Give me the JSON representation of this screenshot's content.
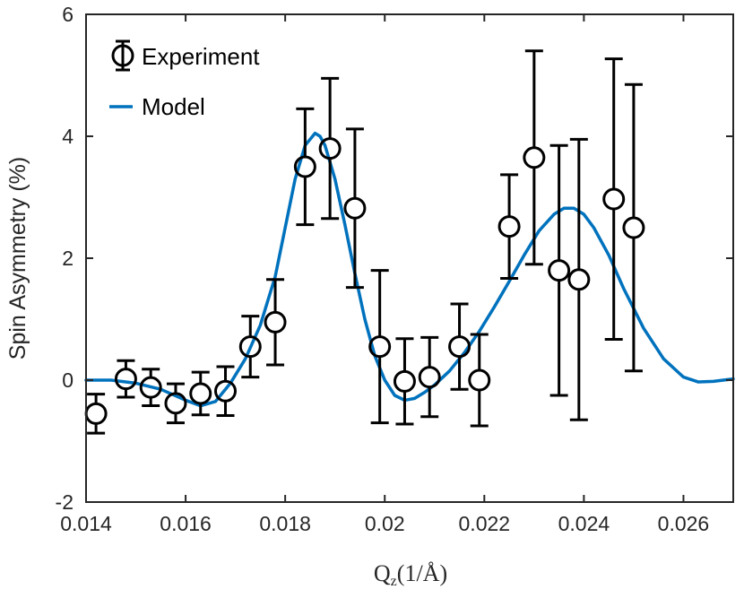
{
  "chart_data": {
    "type": "scatter",
    "title": "",
    "xlabel": "Q_z(1/Å)",
    "xlabel_main": "Q",
    "xlabel_sub": "z",
    "xlabel_rest": "(1/Å)",
    "ylabel": "Spin Asymmetry (%)",
    "xlim": [
      0.014,
      0.027
    ],
    "ylim": [
      -2,
      6
    ],
    "xticks": [
      0.014,
      0.016,
      0.018,
      0.02,
      0.022,
      0.024,
      0.026
    ],
    "xtick_labels": [
      "0.014",
      "0.016",
      "0.018",
      "0.02",
      "0.022",
      "0.024",
      "0.026"
    ],
    "yticks": [
      -2,
      0,
      2,
      4,
      6
    ],
    "ytick_labels": [
      "-2",
      "0",
      "2",
      "4",
      "6"
    ],
    "grid": false,
    "legend_position": "top-left",
    "series": [
      {
        "name": "Experiment",
        "kind": "errorbar",
        "color": "#000000",
        "x": [
          0.0142,
          0.0148,
          0.0153,
          0.0158,
          0.0163,
          0.0168,
          0.0173,
          0.0178,
          0.0184,
          0.0189,
          0.0194,
          0.0199,
          0.0204,
          0.0209,
          0.0215,
          0.0219,
          0.0225,
          0.023,
          0.0235,
          0.0239,
          0.0246,
          0.025
        ],
        "y": [
          -0.55,
          0.02,
          -0.12,
          -0.38,
          -0.22,
          -0.18,
          0.55,
          0.95,
          3.5,
          3.8,
          2.82,
          0.55,
          -0.02,
          0.05,
          0.55,
          0.0,
          2.52,
          3.65,
          1.8,
          1.65,
          2.97,
          2.5
        ],
        "yerr": [
          0.32,
          0.3,
          0.3,
          0.32,
          0.35,
          0.4,
          0.5,
          0.7,
          0.95,
          1.15,
          1.3,
          1.25,
          0.7,
          0.65,
          0.7,
          0.75,
          0.85,
          1.75,
          2.05,
          2.3,
          2.3,
          2.35
        ]
      },
      {
        "name": "Model",
        "kind": "line",
        "color": "#0072BD",
        "x": [
          0.014,
          0.0145,
          0.015,
          0.0155,
          0.016,
          0.0163,
          0.0166,
          0.0169,
          0.0172,
          0.0175,
          0.0178,
          0.018,
          0.0182,
          0.0184,
          0.0186,
          0.0187,
          0.0188,
          0.019,
          0.0192,
          0.0194,
          0.0196,
          0.0198,
          0.02,
          0.0202,
          0.0204,
          0.0206,
          0.0208,
          0.021,
          0.0213,
          0.0216,
          0.0219,
          0.0222,
          0.0225,
          0.0228,
          0.0231,
          0.0234,
          0.0236,
          0.0238,
          0.024,
          0.0242,
          0.0245,
          0.0248,
          0.0252,
          0.0256,
          0.026,
          0.0263,
          0.0266,
          0.0268,
          0.027
        ],
        "y": [
          0.0,
          0.0,
          -0.05,
          -0.15,
          -0.33,
          -0.42,
          -0.35,
          -0.05,
          0.35,
          0.9,
          1.7,
          2.5,
          3.3,
          3.85,
          4.05,
          4.0,
          3.85,
          3.3,
          2.55,
          1.75,
          1.0,
          0.4,
          0.0,
          -0.25,
          -0.33,
          -0.3,
          -0.2,
          -0.08,
          0.15,
          0.45,
          0.8,
          1.2,
          1.62,
          2.05,
          2.45,
          2.72,
          2.82,
          2.82,
          2.72,
          2.5,
          2.05,
          1.5,
          0.85,
          0.35,
          0.05,
          -0.03,
          -0.02,
          0.0,
          0.02
        ]
      }
    ]
  }
}
